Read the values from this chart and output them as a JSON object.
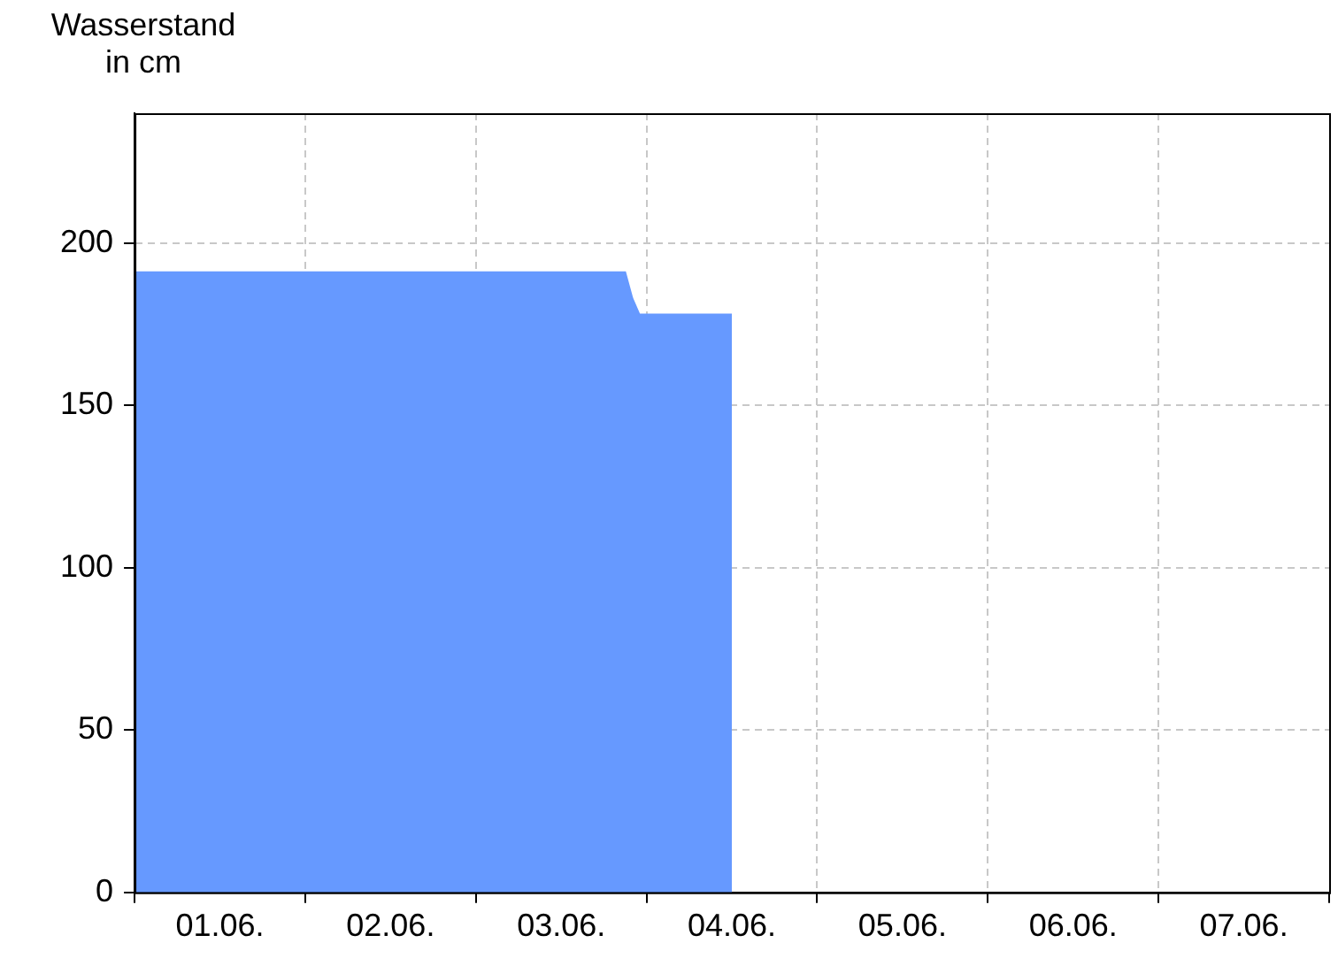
{
  "chart_data": {
    "type": "area",
    "ylabel": "Wasserstand in cm",
    "categories": [
      null,
      null,
      null,
      null,
      null,
      null,
      null,
      null,
      null,
      null,
      null,
      null,
      "01.06.",
      null,
      null,
      null,
      null,
      null,
      null,
      null,
      null,
      null,
      null,
      null,
      null,
      null,
      null,
      null,
      null,
      null,
      null,
      null,
      null,
      null,
      null,
      null,
      "02.06.",
      null,
      null,
      null,
      null,
      null,
      null,
      null,
      null,
      null,
      null,
      null,
      null,
      null,
      null,
      null,
      null,
      null,
      null,
      null,
      null,
      null,
      null,
      null,
      "03.06.",
      null,
      null,
      null,
      null,
      null,
      null,
      null,
      null,
      null,
      null,
      null,
      null,
      null,
      null,
      null,
      null,
      null,
      null,
      null,
      null,
      null,
      null,
      null,
      "04.06.",
      null,
      null,
      null,
      null,
      null,
      null,
      null,
      null,
      null,
      null,
      null,
      null,
      null,
      null,
      null,
      null,
      null,
      null,
      null,
      null,
      null,
      null,
      null,
      "05.06.",
      null,
      null,
      null,
      null,
      null,
      null,
      null,
      null,
      null,
      null,
      null,
      null,
      null,
      null,
      null,
      null,
      null,
      null,
      null,
      null,
      null,
      null,
      null,
      "06.06.",
      null,
      null,
      null,
      null,
      null,
      null,
      null,
      null,
      null,
      null,
      null,
      null,
      null,
      null,
      null,
      null,
      null,
      null,
      null,
      null,
      null,
      null,
      null,
      "07.06.",
      null,
      null,
      null,
      null,
      null,
      null,
      null,
      null,
      null,
      null,
      null,
      null
    ],
    "series": [
      {
        "color": "#6699ff",
        "values": [
          191,
          191,
          191,
          191,
          191,
          191,
          191,
          191,
          191,
          191,
          191,
          191,
          191,
          191,
          191,
          191,
          191,
          191,
          191,
          191,
          191,
          191,
          191,
          191,
          191,
          191,
          191,
          191,
          191,
          191,
          191,
          191,
          191,
          191,
          191,
          191,
          191,
          191,
          191,
          191,
          191,
          191,
          191,
          191,
          191,
          191,
          191,
          191,
          191,
          191,
          191,
          191,
          191,
          191,
          191,
          191,
          191,
          191,
          191,
          191,
          191,
          191,
          191,
          191,
          191,
          191,
          191,
          191,
          191,
          191,
          183,
          178,
          178,
          178,
          178,
          178,
          178,
          178,
          178,
          178,
          178,
          178,
          178,
          178,
          178,
          null,
          null,
          null,
          null,
          null,
          null,
          null,
          null,
          null,
          null,
          null,
          null,
          null,
          null,
          null,
          null,
          null,
          null,
          null,
          null,
          null,
          null,
          null,
          null,
          null,
          null,
          null,
          null,
          null,
          null,
          null,
          null,
          null,
          null,
          null,
          null,
          null,
          null,
          null,
          null,
          null,
          null,
          null,
          null,
          null,
          null,
          null,
          null,
          null,
          null,
          null,
          null,
          null,
          null,
          null,
          null,
          null,
          null,
          null,
          null,
          null,
          null,
          null,
          null,
          null,
          null,
          null,
          null,
          null,
          null,
          null,
          null,
          null,
          null,
          null,
          null,
          null,
          null,
          null,
          null,
          null,
          null,
          null,
          null
        ]
      }
    ],
    "ylim": [
      0,
      240
    ],
    "yticks": [
      0,
      50,
      100,
      150,
      200
    ],
    "grid": true,
    "legend": false
  }
}
